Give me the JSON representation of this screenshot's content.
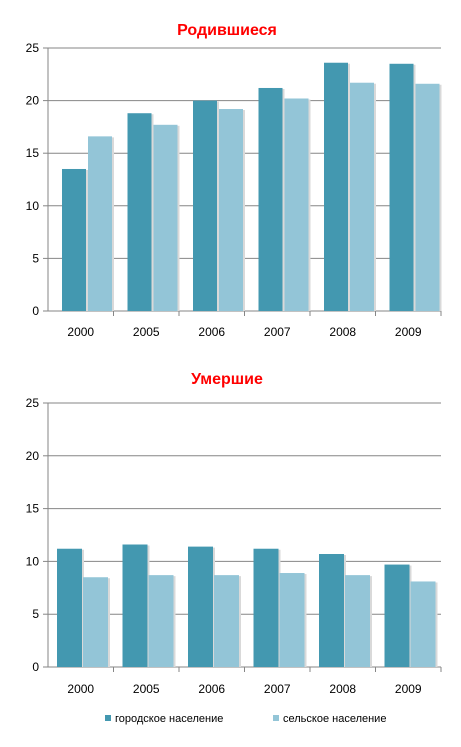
{
  "colors": {
    "urban": "#4398B0",
    "rural": "#93C5D7",
    "title": "#FF0000",
    "axis": "#868686",
    "grid": "#868686"
  },
  "chart_data": [
    {
      "type": "bar",
      "title": "Родившиеся",
      "categories": [
        "2000",
        "2005",
        "2006",
        "2007",
        "2008",
        "2009"
      ],
      "series": [
        {
          "name": "городское население",
          "values": [
            13.5,
            18.8,
            20.0,
            21.2,
            23.6,
            23.5
          ]
        },
        {
          "name": "сельское население",
          "values": [
            16.6,
            17.7,
            19.2,
            20.2,
            21.7,
            21.6
          ]
        }
      ],
      "ylim": [
        0,
        25
      ],
      "yticks": [
        0,
        5,
        10,
        15,
        20,
        25
      ],
      "grid": true
    },
    {
      "type": "bar",
      "title": "Умершие",
      "categories": [
        "2000",
        "2005",
        "2006",
        "2007",
        "2008",
        "2009"
      ],
      "series": [
        {
          "name": "городское население",
          "values": [
            11.2,
            11.6,
            11.4,
            11.2,
            10.7,
            9.7
          ]
        },
        {
          "name": "сельское население",
          "values": [
            8.5,
            8.7,
            8.7,
            8.9,
            8.7,
            8.1
          ]
        }
      ],
      "ylim": [
        0,
        25
      ],
      "yticks": [
        0,
        5,
        10,
        15,
        20,
        25
      ],
      "grid": true,
      "legend": {
        "position": "bottom",
        "entries": [
          "городское население",
          "сельское население"
        ]
      }
    }
  ]
}
